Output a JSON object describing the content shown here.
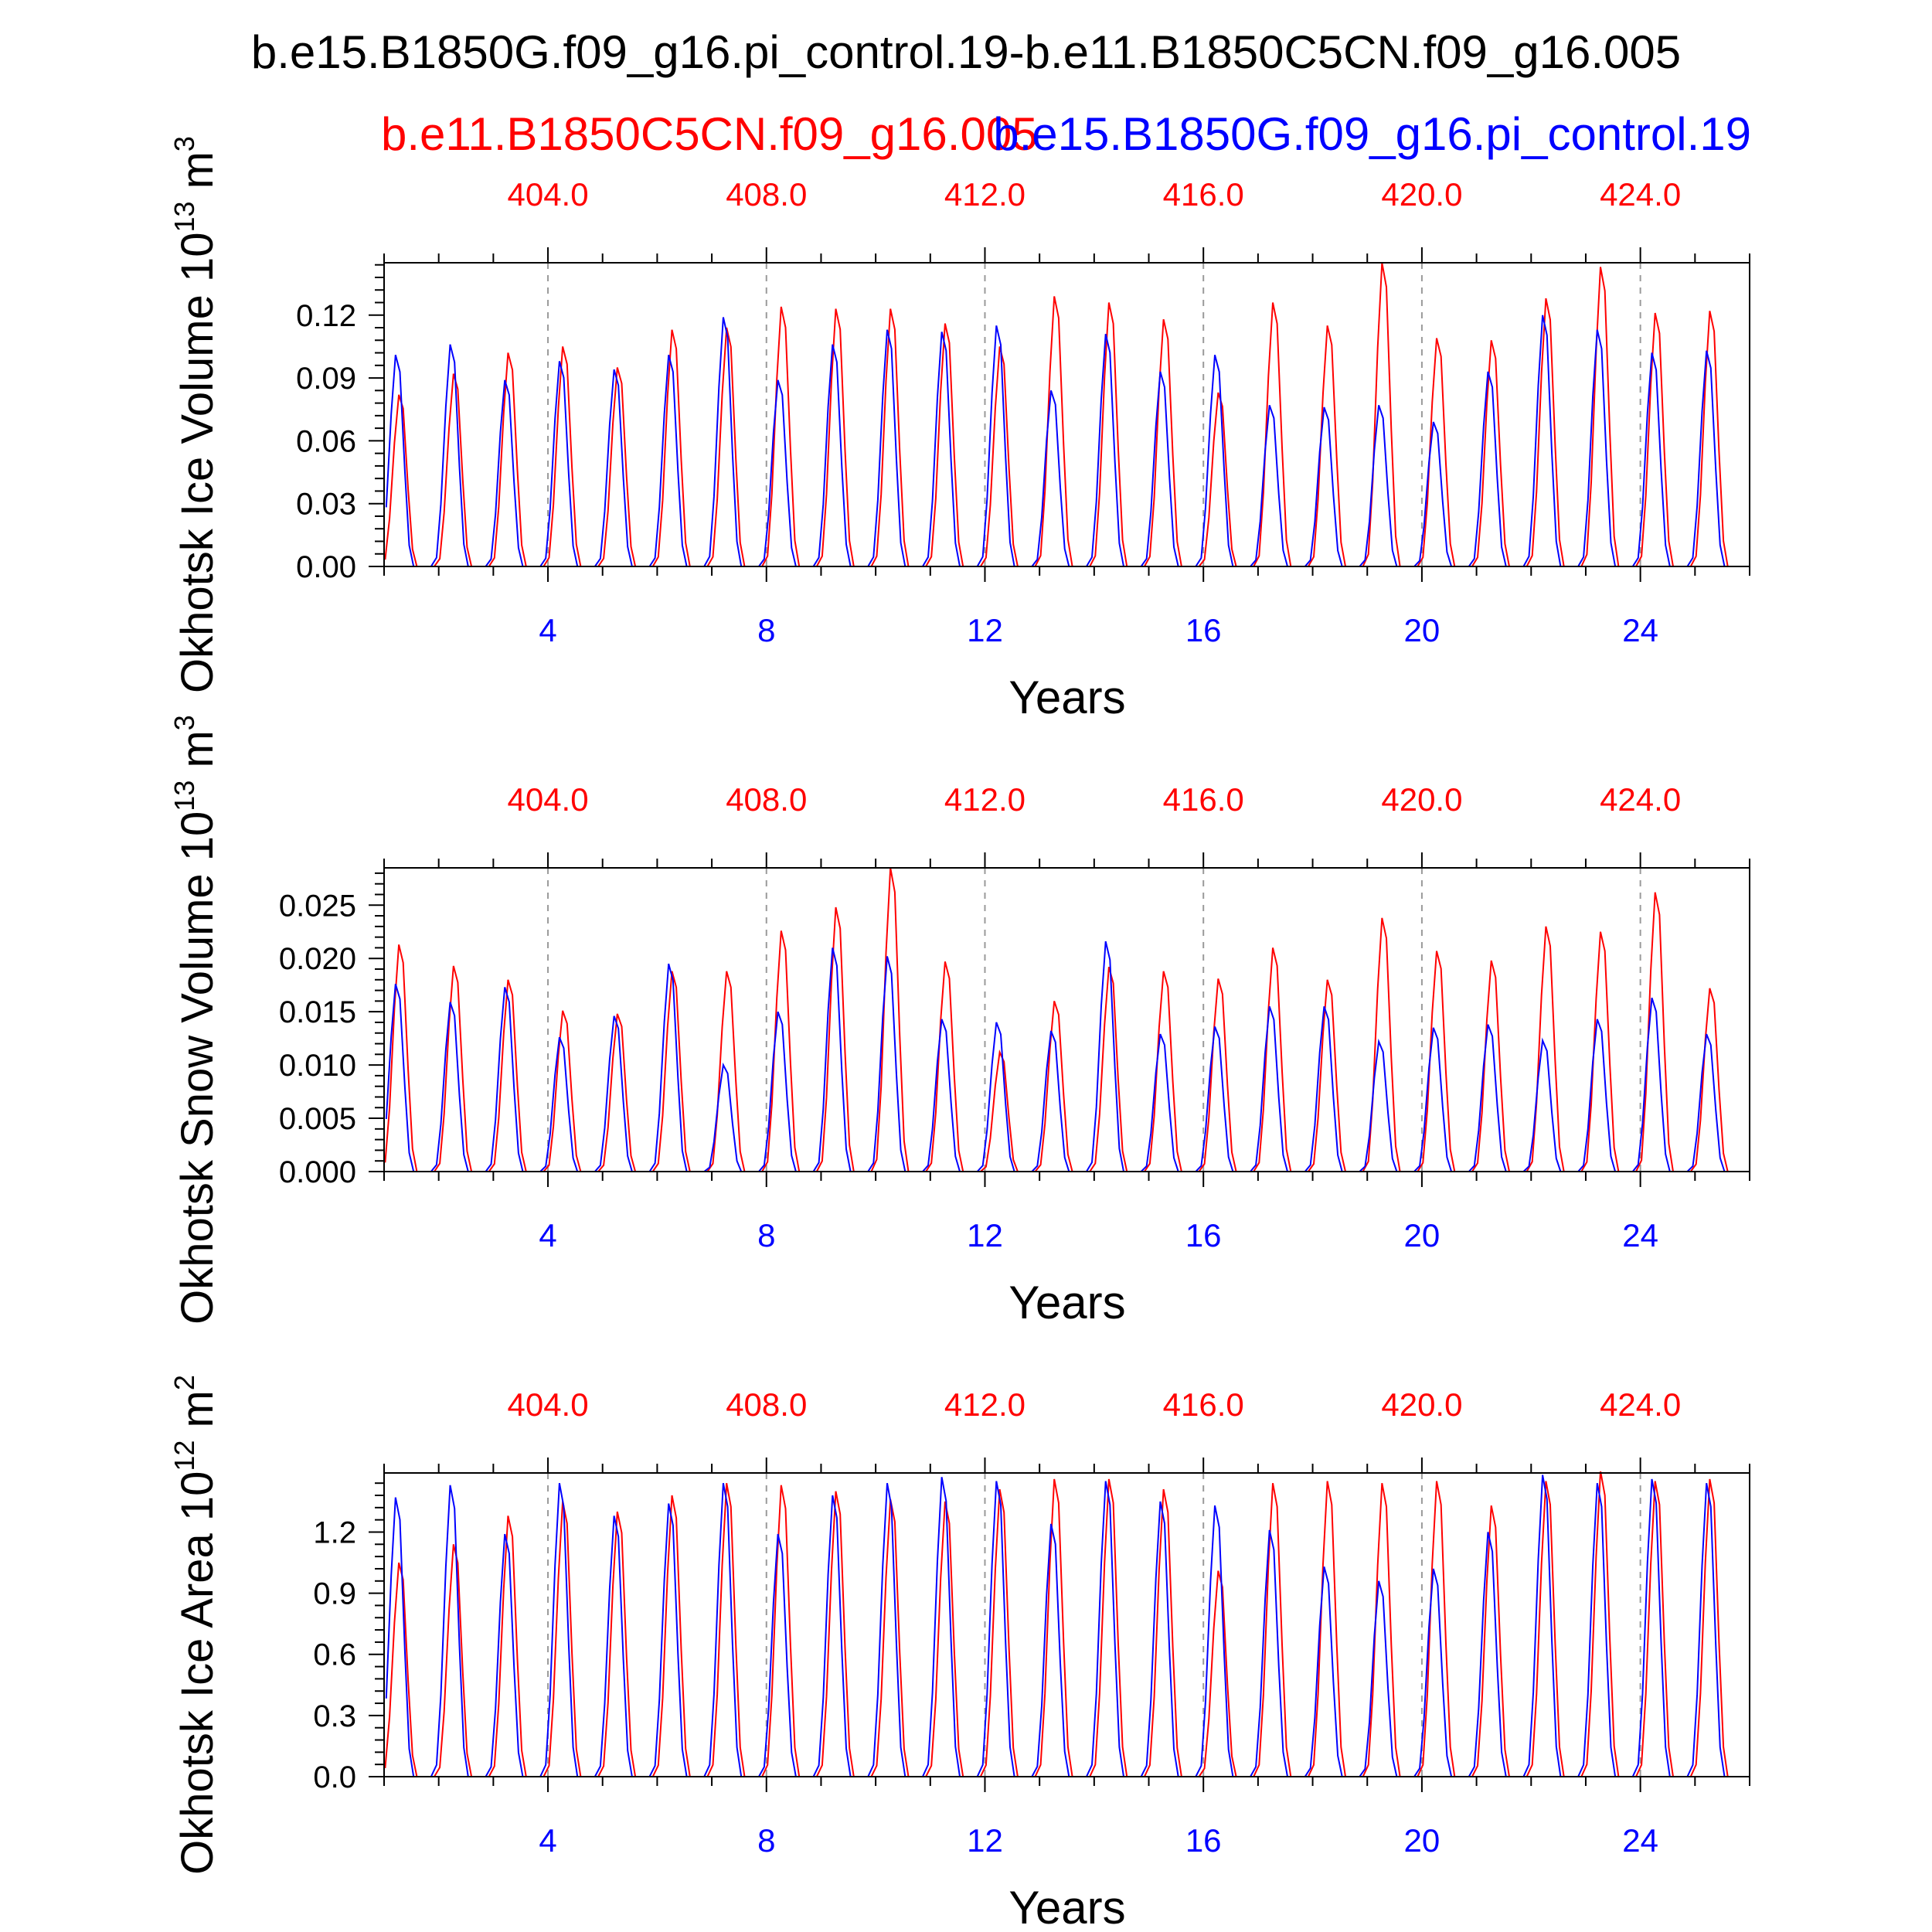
{
  "header": {
    "title": "b.e15.B1850G.f09_g16.pi_control.19-b.e11.B1850C5CN.f09_g16.005",
    "case_red": "b.e11.B1850C5CN.f09_g16.005",
    "case_blue": "b.e15.B1850G.f09_g16.pi_control.19"
  },
  "colors": {
    "red_series": "#ff0000",
    "blue_series": "#0000ff",
    "axis": "#000000",
    "grid": "#9a9a9a"
  },
  "chart_data": [
    {
      "type": "line",
      "ylabel": "Okhotsk Ice Volume 10",
      "ylabel_exp": "13",
      "ylabel_unit": " m",
      "ylabel_unit_exp": "3",
      "xlabel": "Years",
      "xlim": [
        1,
        26
      ],
      "ylim": [
        0,
        0.145
      ],
      "yticks": [
        0.0,
        0.03,
        0.06,
        0.09,
        0.12
      ],
      "ytick_labels": [
        "0.00",
        "0.03",
        "0.06",
        "0.09",
        "0.12"
      ],
      "xticks": [
        4,
        8,
        12,
        16,
        20,
        24
      ],
      "xtick_labels": [
        "4",
        "8",
        "12",
        "16",
        "20",
        "24"
      ],
      "top_xtick_labels": [
        "404.0",
        "408.0",
        "412.0",
        "416.0",
        "420.0",
        "424.0"
      ],
      "grid": "vertical dashed at labeled x ticks",
      "series": [
        {
          "name": "b.e11.B1850C5CN.f09_g16.005",
          "color": "red",
          "annual_peaks": [
            0.082,
            0.092,
            0.102,
            0.105,
            0.095,
            0.113,
            0.114,
            0.124,
            0.123,
            0.123,
            0.116,
            0.105,
            0.129,
            0.126,
            0.118,
            0.083,
            0.126,
            0.115,
            0.145,
            0.109,
            0.108,
            0.128,
            0.143,
            0.121,
            0.122
          ]
        },
        {
          "name": "b.e15.B1850G.f09_g16.pi_control.19",
          "color": "blue",
          "annual_peaks": [
            0.101,
            0.106,
            0.089,
            0.098,
            0.094,
            0.101,
            0.119,
            0.089,
            0.106,
            0.113,
            0.112,
            0.115,
            0.084,
            0.111,
            0.093,
            0.101,
            0.077,
            0.076,
            0.077,
            0.069,
            0.093,
            0.12,
            0.113,
            0.102,
            0.103
          ]
        }
      ]
    },
    {
      "type": "line",
      "ylabel": "Okhotsk Snow Volume 10",
      "ylabel_exp": "13",
      "ylabel_unit": " m",
      "ylabel_unit_exp": "3",
      "xlabel": "Years",
      "xlim": [
        1,
        26
      ],
      "ylim": [
        0,
        0.0285
      ],
      "yticks": [
        0.0,
        0.005,
        0.01,
        0.015,
        0.02,
        0.025
      ],
      "ytick_labels": [
        "0.000",
        "0.005",
        "0.010",
        "0.015",
        "0.020",
        "0.025"
      ],
      "xticks": [
        4,
        8,
        12,
        16,
        20,
        24
      ],
      "xtick_labels": [
        "4",
        "8",
        "12",
        "16",
        "20",
        "24"
      ],
      "top_xtick_labels": [
        "404.0",
        "408.0",
        "412.0",
        "416.0",
        "420.0",
        "424.0"
      ],
      "grid": "vertical dashed at labeled x ticks",
      "series": [
        {
          "name": "b.e11.B1850C5CN.f09_g16.005",
          "color": "red",
          "annual_peaks": [
            0.0213,
            0.0193,
            0.018,
            0.0151,
            0.0148,
            0.0188,
            0.0188,
            0.0226,
            0.0248,
            0.0285,
            0.0197,
            0.0112,
            0.016,
            0.0192,
            0.0188,
            0.0181,
            0.021,
            0.018,
            0.0238,
            0.0207,
            0.0198,
            0.023,
            0.0225,
            0.0262,
            0.0172
          ]
        },
        {
          "name": "b.e15.B1850G.f09_g16.pi_control.19",
          "color": "blue",
          "annual_peaks": [
            0.0176,
            0.0159,
            0.0173,
            0.0126,
            0.0146,
            0.0195,
            0.01,
            0.015,
            0.021,
            0.0202,
            0.0143,
            0.014,
            0.0132,
            0.0216,
            0.0129,
            0.0136,
            0.0155,
            0.0155,
            0.0122,
            0.0135,
            0.0138,
            0.0123,
            0.0143,
            0.0163,
            0.0129
          ]
        }
      ]
    },
    {
      "type": "line",
      "ylabel": "Okhotsk Ice Area 10",
      "ylabel_exp": "12",
      "ylabel_unit": " m",
      "ylabel_unit_exp": "2",
      "xlabel": "Years",
      "xlim": [
        1,
        26
      ],
      "ylim": [
        0,
        1.49
      ],
      "yticks": [
        0.0,
        0.3,
        0.6,
        0.9,
        1.2
      ],
      "ytick_labels": [
        "0.0",
        "0.3",
        "0.6",
        "0.9",
        "1.2"
      ],
      "xticks": [
        4,
        8,
        12,
        16,
        20,
        24
      ],
      "xtick_labels": [
        "4",
        "8",
        "12",
        "16",
        "20",
        "24"
      ],
      "top_xtick_labels": [
        "404.0",
        "408.0",
        "412.0",
        "416.0",
        "420.0",
        "424.0"
      ],
      "grid": "vertical dashed at labeled x ticks",
      "series": [
        {
          "name": "b.e11.B1850C5CN.f09_g16.005",
          "color": "red",
          "annual_peaks": [
            1.05,
            1.14,
            1.28,
            1.35,
            1.3,
            1.38,
            1.44,
            1.43,
            1.4,
            1.36,
            1.35,
            1.41,
            1.46,
            1.46,
            1.41,
            1.01,
            1.44,
            1.45,
            1.44,
            1.45,
            1.33,
            1.45,
            1.5,
            1.45,
            1.46
          ]
        },
        {
          "name": "b.e15.B1850G.f09_g16.pi_control.19",
          "color": "blue",
          "annual_peaks": [
            1.37,
            1.43,
            1.19,
            1.44,
            1.28,
            1.34,
            1.44,
            1.19,
            1.38,
            1.44,
            1.47,
            1.45,
            1.24,
            1.45,
            1.35,
            1.33,
            1.21,
            1.03,
            0.96,
            1.02,
            1.2,
            1.48,
            1.44,
            1.46,
            1.44
          ]
        }
      ]
    }
  ]
}
